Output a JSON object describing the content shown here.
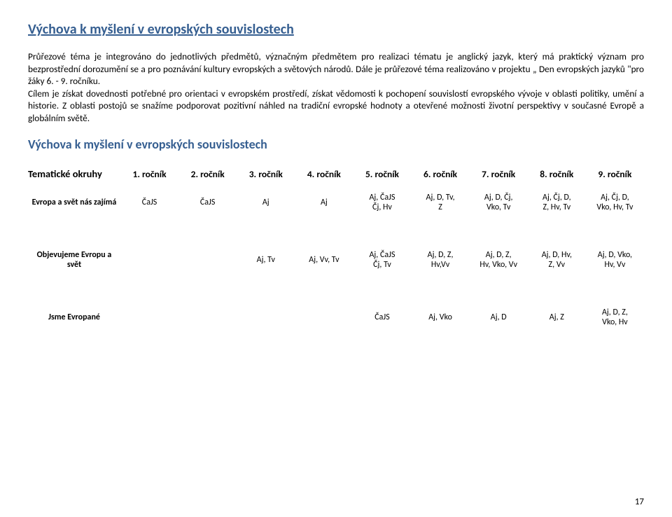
{
  "colors": {
    "heading": "#365f91",
    "text": "#000000",
    "background": "#ffffff"
  },
  "typography": {
    "body_family": "Calibri, 'Segoe UI', Arial, sans-serif",
    "heading_size_pt": 15,
    "subheading_size_pt": 13,
    "body_size_pt": 10,
    "table_header_size_pt": 10,
    "table_cell_size_pt": 9
  },
  "heading": "Výchova k myšlení v evropských souvislostech",
  "paragraph": "Průřezové téma je integrováno do jednotlivých předmětů, význačným předmětem pro realizaci tématu je anglický jazyk, který má praktický význam pro bezprostřední dorozumění se a pro poznávání kultury evropských a světových národů. Dále je průřezové téma realizováno v projektu „ Den evropských jazyků \"pro žáky 6. - 9. ročníku.\nCílem je získat dovednosti potřebné pro orientaci v evropském prostředí, získat vědomosti k pochopení souvislostí evropského vývoje v oblasti politiky, umění a historie. Z oblasti postojů se snažíme podporovat pozitivní náhled na tradiční evropské hodnoty a otevřené možnosti životní perspektivy v současné Evropě a globálním světě.",
  "subheading": "Výchova k myšlení v evropských souvislostech",
  "table": {
    "header_label": "Tematické okruhy",
    "columns": [
      "1. ročník",
      "2. ročník",
      "3. ročník",
      "4. ročník",
      "5. ročník",
      "6. ročník",
      "7. ročník",
      "8. ročník",
      "9. ročník"
    ],
    "rows": [
      {
        "label": "Evropa a svět nás zajímá",
        "cells": [
          "ČaJS",
          "ČaJS",
          "Aj",
          "Aj",
          "Aj, ČaJS\nČj, Hv",
          "Aj, D, Tv,\nZ",
          "Aj, D, Čj,\nVko, Tv",
          "Aj, Čj, D,\nZ, Hv, Tv",
          "Aj, Čj, D,\nVko, Hv, Tv"
        ]
      },
      {
        "label": "Objevujeme Evropu a svět",
        "cells": [
          "",
          "",
          "Aj, Tv",
          "Aj, Vv, Tv",
          "Aj, ČaJS\nČj, Tv",
          "Aj, D, Z,\nHv,Vv",
          "Aj, D, Z,\nHv, Vko, Vv",
          "Aj, D, Hv,\nZ, Vv",
          "Aj, D, Vko,\nHv, Vv"
        ]
      },
      {
        "label": "Jsme Evropané",
        "cells": [
          "",
          "",
          "",
          "",
          "ČaJS",
          "Aj, Vko",
          "Aj, D",
          "Aj, Z",
          "Aj, D, Z,\nVko, Hv"
        ]
      }
    ]
  },
  "page_number": "17"
}
